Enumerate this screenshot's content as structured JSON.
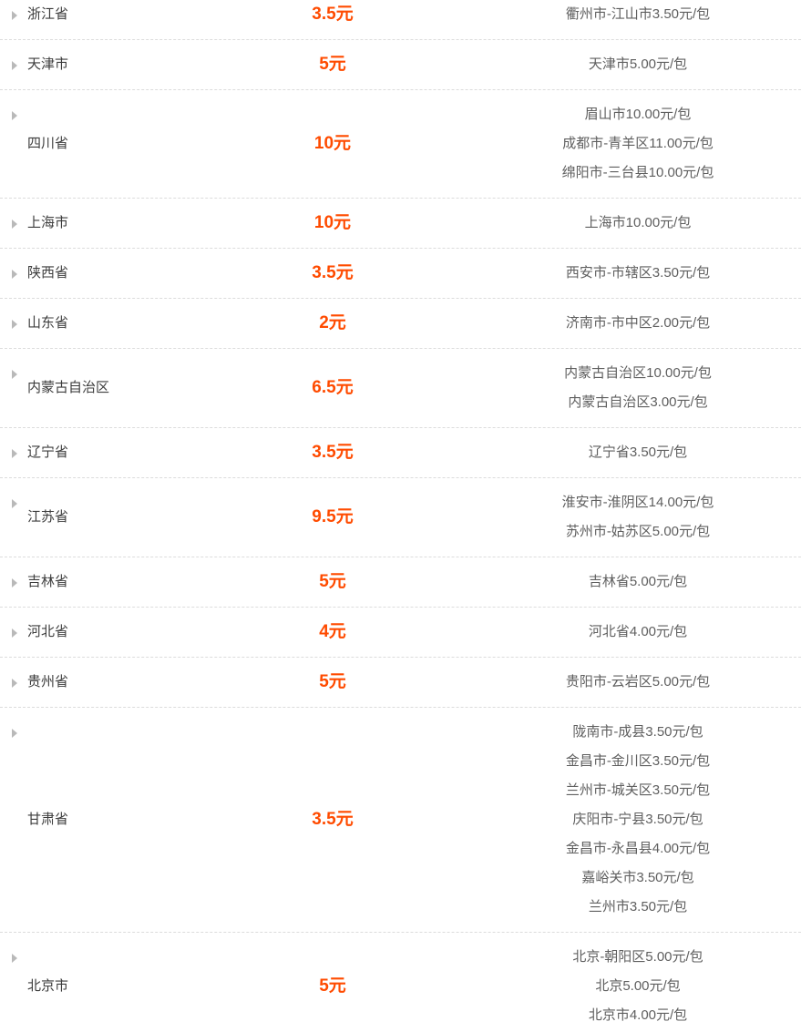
{
  "page": {
    "background": "#ffffff",
    "price_color": "#ff4b00",
    "province_text_color": "#3d3d3d",
    "detail_text_color": "#5f5f5f",
    "divider_color": "#dcdcdc",
    "expand_icon": "caret-right",
    "expand_icon_color": "#b9b9b9"
  },
  "table": {
    "rows": [
      {
        "province": "浙江省",
        "price": "3.5元",
        "details": [
          "衢州市-江山市3.50元/包"
        ]
      },
      {
        "province": "天津市",
        "price": "5元",
        "details": [
          "天津市5.00元/包"
        ]
      },
      {
        "province": "四川省",
        "price": "10元",
        "details": [
          "眉山市10.00元/包",
          "成都市-青羊区11.00元/包",
          "绵阳市-三台县10.00元/包"
        ]
      },
      {
        "province": "上海市",
        "price": "10元",
        "details": [
          "上海市10.00元/包"
        ]
      },
      {
        "province": "陕西省",
        "price": "3.5元",
        "details": [
          "西安市-市辖区3.50元/包"
        ]
      },
      {
        "province": "山东省",
        "price": "2元",
        "details": [
          "济南市-市中区2.00元/包"
        ]
      },
      {
        "province": "内蒙古自治区",
        "price": "6.5元",
        "details": [
          "内蒙古自治区10.00元/包",
          "内蒙古自治区3.00元/包"
        ]
      },
      {
        "province": "辽宁省",
        "price": "3.5元",
        "details": [
          "辽宁省3.50元/包"
        ]
      },
      {
        "province": "江苏省",
        "price": "9.5元",
        "details": [
          "淮安市-淮阴区14.00元/包",
          "苏州市-姑苏区5.00元/包"
        ]
      },
      {
        "province": "吉林省",
        "price": "5元",
        "details": [
          "吉林省5.00元/包"
        ]
      },
      {
        "province": "河北省",
        "price": "4元",
        "details": [
          "河北省4.00元/包"
        ]
      },
      {
        "province": "贵州省",
        "price": "5元",
        "details": [
          "贵阳市-云岩区5.00元/包"
        ]
      },
      {
        "province": "甘肃省",
        "price": "3.5元",
        "details": [
          "陇南市-成县3.50元/包",
          "金昌市-金川区3.50元/包",
          "兰州市-城关区3.50元/包",
          "庆阳市-宁县3.50元/包",
          "金昌市-永昌县4.00元/包",
          "嘉峪关市3.50元/包",
          "兰州市3.50元/包"
        ]
      },
      {
        "province": "北京市",
        "price": "5元",
        "details": [
          "北京-朝阳区5.00元/包",
          "北京5.00元/包",
          "北京市4.00元/包"
        ]
      }
    ]
  }
}
